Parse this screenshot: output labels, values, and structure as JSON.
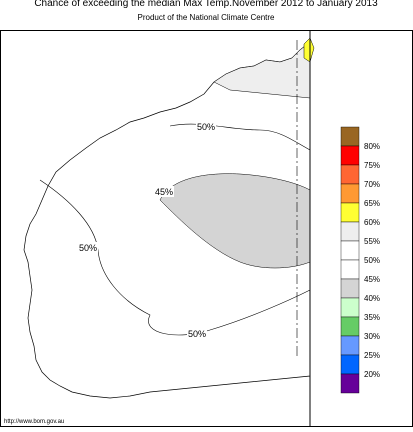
{
  "header": {
    "title": "Chance of exceeding the median Max Temp.November 2012 to January 2013",
    "subtitle": "Product of the National Climate Centre"
  },
  "contour_labels": [
    "50%",
    "45%",
    "50%",
    "50%"
  ],
  "legend": {
    "labels": [
      "80%",
      "75%",
      "70%",
      "65%",
      "60%",
      "55%",
      "50%",
      "45%",
      "40%",
      "35%",
      "30%",
      "25%",
      "20%"
    ]
  },
  "footer": {
    "url": "http://www.bom.gov.au"
  }
}
